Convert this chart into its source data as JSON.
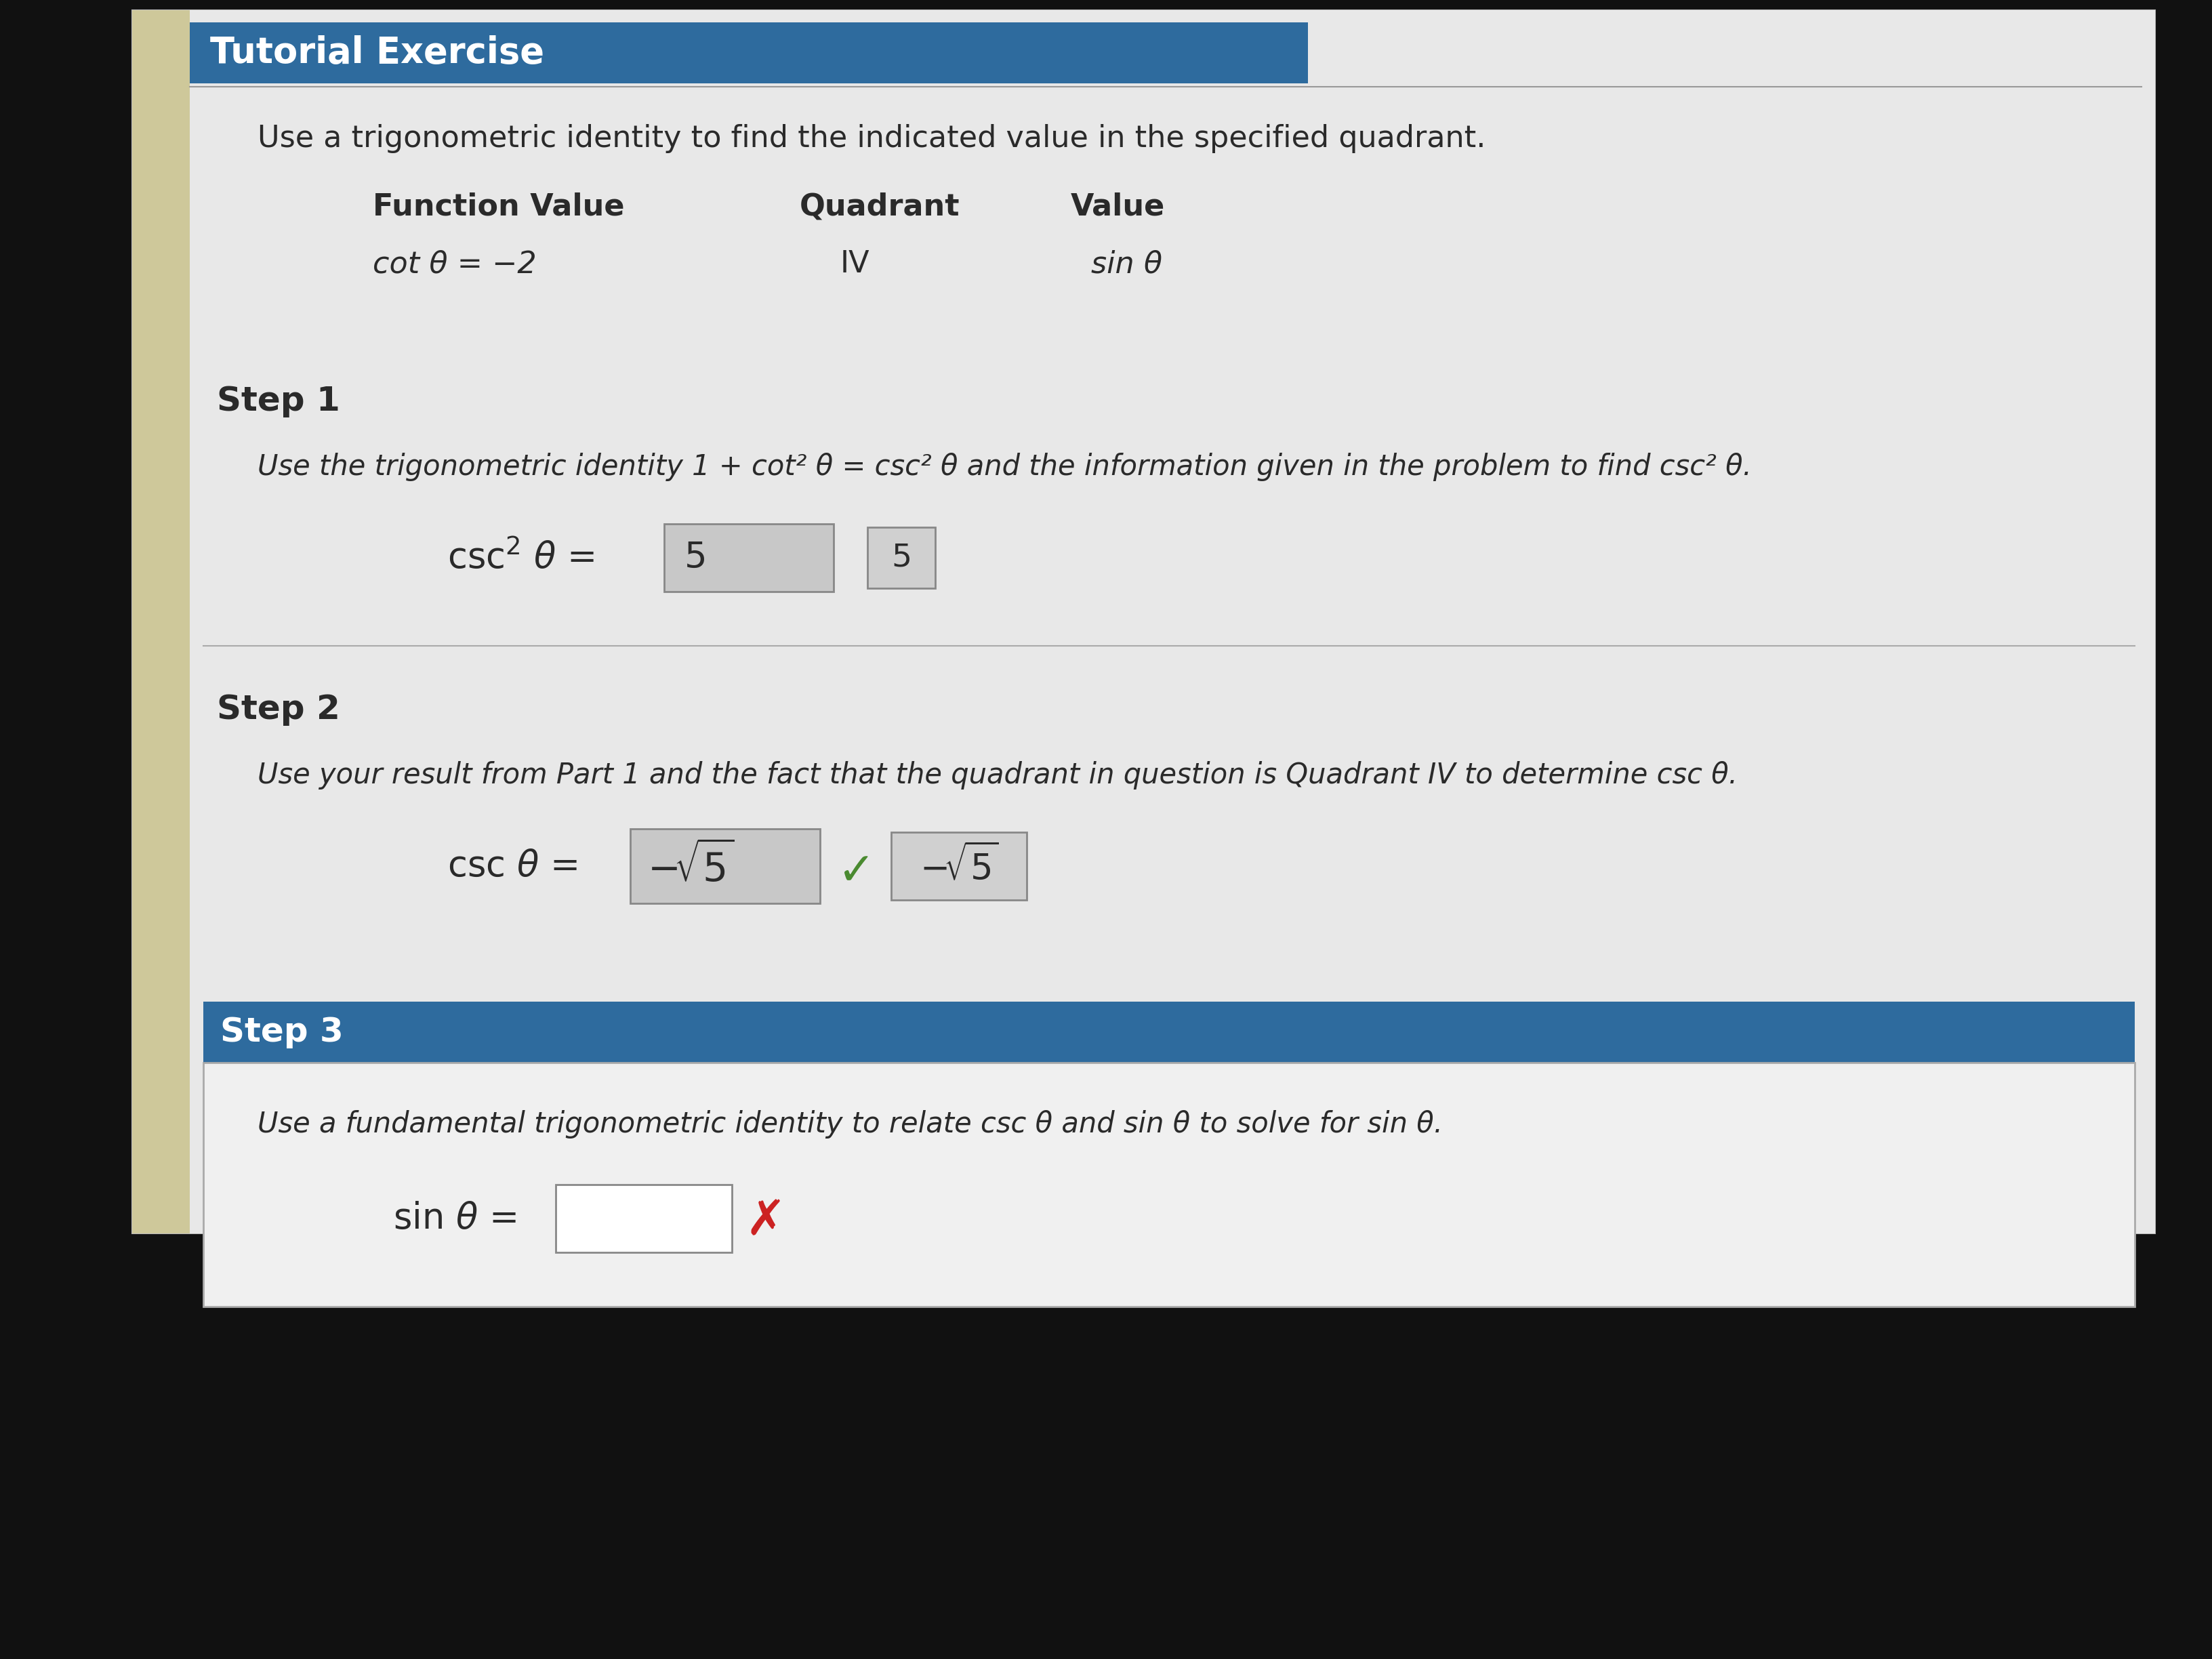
{
  "bg_color": "#111111",
  "page_bg": "#dcdcdc",
  "sidebar_color": "#cec89a",
  "header_bg": "#2e6b9e",
  "header_text": "Tutorial Exercise",
  "header_text_color": "#ffffff",
  "intro_text": "Use a trigonometric identity to find the indicated value in the specified quadrant.",
  "col1_header": "Function Value",
  "col2_header": "Quadrant",
  "col3_header": "Value",
  "col1_val": "cot θ = −2",
  "col2_val": "IV",
  "col3_val": "sin θ",
  "step1_label": "Step 1",
  "step1_text": "Use the trigonometric identity 1 + cot² θ = csc² θ and the information given in the problem to find csc² θ.",
  "step2_label": "Step 2",
  "step2_text": "Use your result from Part 1 and the fact that the quadrant in question is Quadrant IV to determine csc θ.",
  "step3_label": "Step 3",
  "step3_header_bg": "#2e6b9e",
  "step3_text": "Use a fundamental trigonometric identity to relate csc θ and sin θ to solve for sin θ.",
  "checkmark_color": "#4a8a30",
  "xmark_color": "#cc2222",
  "text_color": "#2a2a2a",
  "line_color": "#999999",
  "input_bg": "#c8c8c8",
  "ans_bg": "#c0c0c0"
}
